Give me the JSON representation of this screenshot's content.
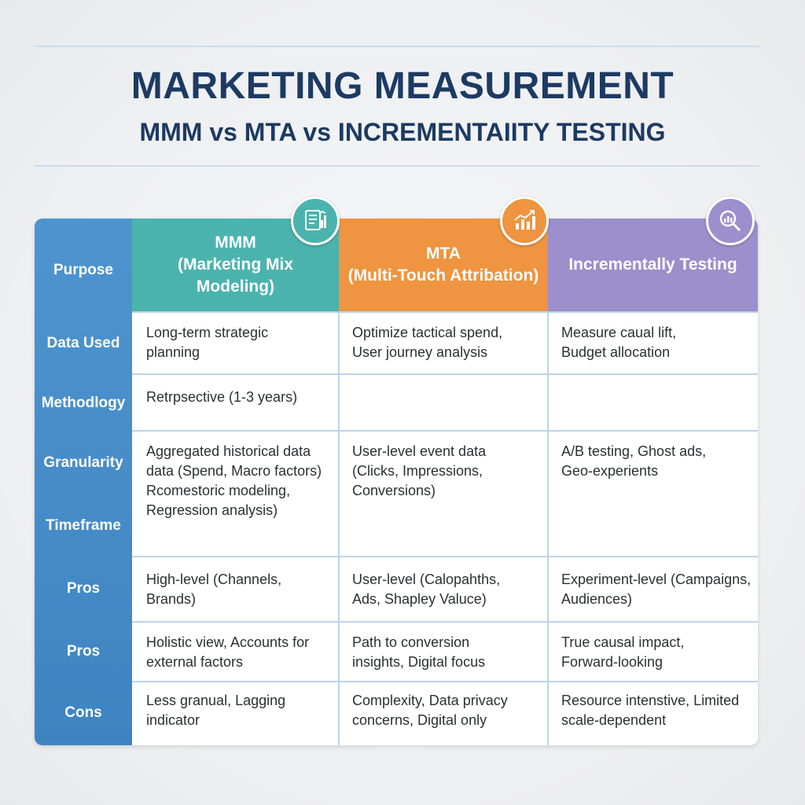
{
  "header": {
    "title": "MARKETING MEASUREMENT",
    "subtitle": "MMM vs MTA vs INCREMENTAIITY TESTING"
  },
  "columns": [
    {
      "key": "mmm",
      "label": "MMM\n(Marketing Mix\nModeling)",
      "icon": "document-chart-icon",
      "color": "#4bb3ad"
    },
    {
      "key": "mta",
      "label": "MTA\n(Multi-Touch Attribation)",
      "icon": "bar-chart-trend-icon",
      "color": "#ef9440"
    },
    {
      "key": "inc",
      "label": "Incrementally Testing",
      "icon": "magnifier-chart-icon",
      "color": "#9b8fcc"
    }
  ],
  "row_labels": {
    "purpose": "Purpose",
    "data_used": "Data Used",
    "methodology": "Methodlogy",
    "granularity": "Granularity",
    "timeframe": "Timeframe",
    "pros1": "Pros",
    "pros2": "Pros",
    "cons": "Cons"
  },
  "rows": {
    "data_used": {
      "mmm": "Long-term strategic\nplanning",
      "mta": "Optimize tactical spend,\nUser journey analysis",
      "inc": "Measure caual lift,\nBudget allocation"
    },
    "methodology": {
      "mmm": "Retrpsective (1-3 years)",
      "mta": "",
      "inc": ""
    },
    "granularity": {
      "mmm": "Aggregated historical data\ndata (Spend, Macro factors)\nRcomestoric modeling,\nRegression analysis)",
      "mta": "User-level event data\n(Clicks, Impressions,\nConversions)",
      "inc": "A/B testing, Ghost ads,\nGeo-experients"
    },
    "pros1": {
      "mmm": "High-level (Channels,\nBrands)",
      "mta": "User-level (Calopahths,\nAds, Shapley Valuce)",
      "inc": "Experiment-level (Campaigns,\nAudiences)"
    },
    "pros2": {
      "mmm": "Holistic view, Accounts for\nexternal factors",
      "mta": "Path to conversion\ninsights, Digital focus",
      "inc": "True causal impact,\nForward-looking"
    },
    "cons": {
      "mmm": "Less granual, Lagging\nindicator",
      "mta": "Complexity, Data privacy\nconcerns, Digital only",
      "inc": "Resource intenstive, Limited\nscale-dependent"
    }
  },
  "colors": {
    "title": "#1c3a63",
    "label_column": "#4a90cc",
    "mmm": "#4bb3ad",
    "mta": "#ef9440",
    "inc": "#9b8fcc",
    "grid": "#bdd4e8"
  }
}
